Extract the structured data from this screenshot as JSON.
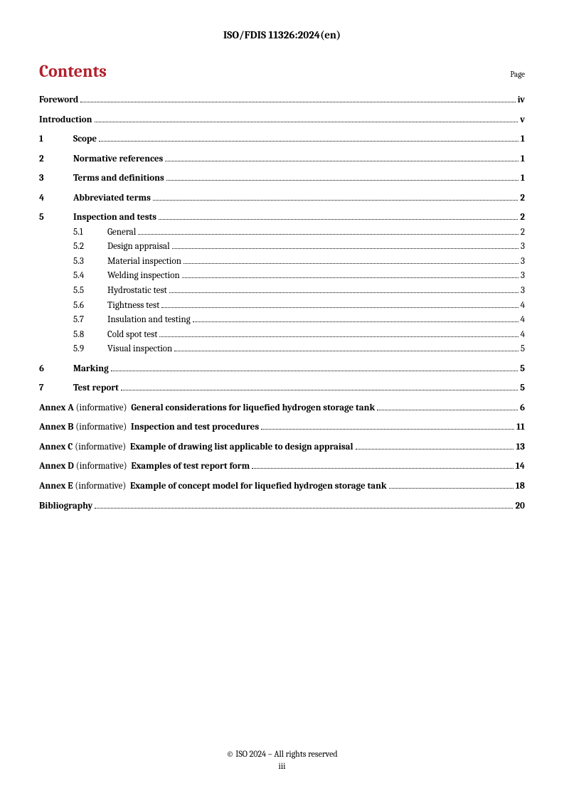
{
  "header": "ISO/FDIS 11326:2024(en)",
  "contents_title": "Contents",
  "page_label": "Page",
  "toc": {
    "foreword": {
      "label": "Foreword",
      "page": "iv"
    },
    "introduction": {
      "label": "Introduction",
      "page": "v"
    },
    "s1": {
      "num": "1",
      "label": "Scope",
      "page": "1"
    },
    "s2": {
      "num": "2",
      "label": "Normative references",
      "page": "1"
    },
    "s3": {
      "num": "3",
      "label": "Terms and definitions",
      "page": "1"
    },
    "s4": {
      "num": "4",
      "label": "Abbreviated terms",
      "page": "2"
    },
    "s5": {
      "num": "5",
      "label": "Inspection and tests",
      "page": "2"
    },
    "s5_1": {
      "num": "5.1",
      "label": "General",
      "page": "2"
    },
    "s5_2": {
      "num": "5.2",
      "label": "Design appraisal",
      "page": "3"
    },
    "s5_3": {
      "num": "5.3",
      "label": "Material inspection",
      "page": "3"
    },
    "s5_4": {
      "num": "5.4",
      "label": "Welding inspection",
      "page": "3"
    },
    "s5_5": {
      "num": "5.5",
      "label": "Hydrostatic test",
      "page": "3"
    },
    "s5_6": {
      "num": "5.6",
      "label": "Tightness test",
      "page": "4"
    },
    "s5_7": {
      "num": "5.7",
      "label": "Insulation and testing",
      "page": "4"
    },
    "s5_8": {
      "num": "5.8",
      "label": "Cold spot test",
      "page": "4"
    },
    "s5_9": {
      "num": "5.9",
      "label": "Visual inspection",
      "page": "5"
    },
    "s6": {
      "num": "6",
      "label": "Marking",
      "page": "5"
    },
    "s7": {
      "num": "7",
      "label": "Test report",
      "page": "5"
    },
    "annexA": {
      "prefix": "Annex A",
      "inf": "(informative)",
      "title": "General considerations for liquefied hydrogen storage tank",
      "page": "6"
    },
    "annexB": {
      "prefix": "Annex B",
      "inf": "(informative)",
      "title": "Inspection and test procedures",
      "page": "11"
    },
    "annexC": {
      "prefix": "Annex C",
      "inf": "(informative)",
      "title": "Example of drawing list applicable to design appraisal",
      "page": "13"
    },
    "annexD": {
      "prefix": "Annex D",
      "inf": "(informative)",
      "title": "Examples of test report form",
      "page": "14"
    },
    "annexE": {
      "prefix": "Annex E",
      "inf": "(informative)",
      "title": "Example of concept model for liquefied hydrogen storage tank",
      "page": "18"
    },
    "bibliography": {
      "label": "Bibliography",
      "page": "20"
    }
  },
  "footer": {
    "copyright": "© ISO 2024 – All rights reserved",
    "pagenum": "iii"
  }
}
